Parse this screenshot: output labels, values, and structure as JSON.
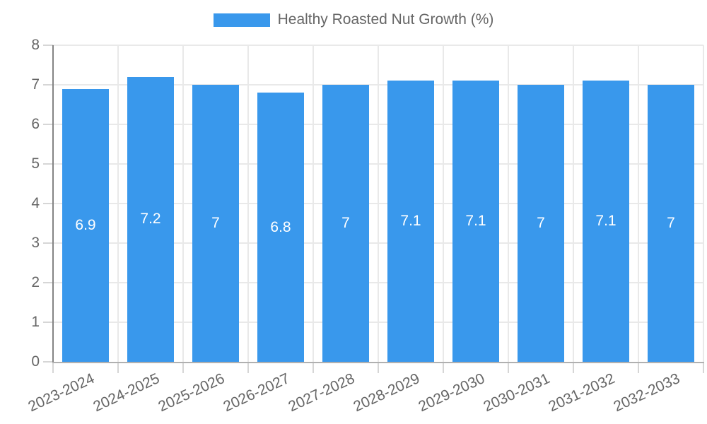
{
  "chart_data": {
    "type": "bar",
    "title": "Healthy Roasted Nut Growth (%)",
    "legend_position": "top",
    "categories": [
      "2023-2024",
      "2024-2025",
      "2025-2026",
      "2026-2027",
      "2027-2028",
      "2028-2029",
      "2029-2030",
      "2030-2031",
      "2031-2032",
      "2032-2033"
    ],
    "values": [
      6.9,
      7.2,
      7,
      6.8,
      7,
      7.1,
      7.1,
      7,
      7.1,
      7
    ],
    "value_labels": [
      "6.9",
      "7.2",
      "7",
      "6.8",
      "7",
      "7.1",
      "7.1",
      "7",
      "7.1",
      "7"
    ],
    "xlabel": "",
    "ylabel": "",
    "ylim": [
      0,
      8
    ],
    "y_ticks": [
      "0",
      "1",
      "2",
      "3",
      "4",
      "5",
      "6",
      "7",
      "8"
    ],
    "grid": true,
    "colors": {
      "bar": "#3998ec",
      "bar_value_text": "#ffffff",
      "axis_text": "#666666",
      "gridline": "#e9e9e9",
      "y_axis_line": "#848484",
      "x_axis_line": "#b0b0b0",
      "tick_mark": "#d6d6d6"
    }
  }
}
